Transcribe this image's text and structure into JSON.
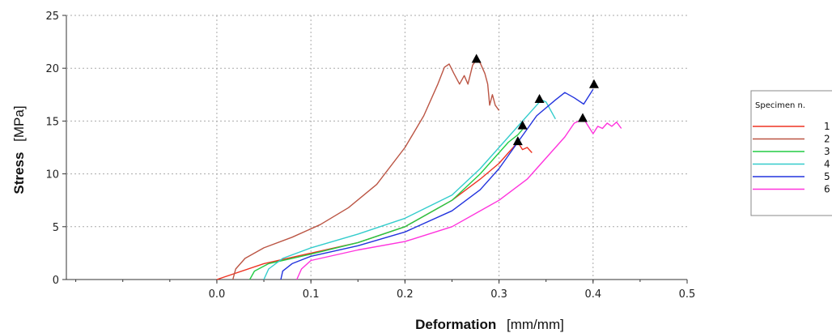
{
  "chart_data": {
    "type": "line",
    "xlabel": {
      "bold": "Deformation",
      "unit": "[mm/mm]"
    },
    "ylabel": {
      "bold": "Stress",
      "unit": "[MPa]"
    },
    "xlim": [
      -0.16,
      0.5
    ],
    "ylim": [
      0,
      25
    ],
    "x_ticks": [
      "0.0",
      "0.1",
      "0.2",
      "0.3",
      "0.4",
      "0.5"
    ],
    "x_tick_values": [
      0,
      0.1,
      0.2,
      0.3,
      0.4,
      0.5
    ],
    "y_ticks": [
      "0",
      "5",
      "10",
      "15",
      "20",
      "25"
    ],
    "y_tick_values": [
      0,
      5,
      10,
      15,
      20,
      25
    ],
    "grid": true,
    "legend": {
      "title": "Specimen n.",
      "placement": "right"
    },
    "series": [
      {
        "name": "1",
        "color": "#ee3322",
        "points": [
          [
            0,
            0
          ],
          [
            0.05,
            1.5
          ],
          [
            0.1,
            2.5
          ],
          [
            0.15,
            3.5
          ],
          [
            0.2,
            5
          ],
          [
            0.25,
            7.5
          ],
          [
            0.28,
            9.5
          ],
          [
            0.3,
            11
          ],
          [
            0.31,
            12
          ],
          [
            0.32,
            13
          ],
          [
            0.325,
            12.3
          ],
          [
            0.33,
            12.5
          ],
          [
            0.335,
            12
          ]
        ],
        "peak": [
          0.32,
          13.1
        ]
      },
      {
        "name": "2",
        "color": "#bb5544",
        "points": [
          [
            0.017,
            0
          ],
          [
            0.02,
            1
          ],
          [
            0.03,
            2
          ],
          [
            0.05,
            3
          ],
          [
            0.08,
            4
          ],
          [
            0.11,
            5.2
          ],
          [
            0.14,
            6.8
          ],
          [
            0.17,
            9
          ],
          [
            0.2,
            12.5
          ],
          [
            0.22,
            15.5
          ],
          [
            0.235,
            18.5
          ],
          [
            0.242,
            20.1
          ],
          [
            0.247,
            20.4
          ],
          [
            0.252,
            19.5
          ],
          [
            0.258,
            18.5
          ],
          [
            0.263,
            19.3
          ],
          [
            0.267,
            18.5
          ],
          [
            0.272,
            20.3
          ],
          [
            0.276,
            20.8
          ],
          [
            0.28,
            20.5
          ],
          [
            0.285,
            19.5
          ],
          [
            0.288,
            18.5
          ],
          [
            0.29,
            16.5
          ],
          [
            0.293,
            17.5
          ],
          [
            0.296,
            16.5
          ],
          [
            0.3,
            16
          ]
        ],
        "peak": [
          0.276,
          20.9
        ]
      },
      {
        "name": "3",
        "color": "#22cc44",
        "points": [
          [
            0.035,
            0
          ],
          [
            0.04,
            0.8
          ],
          [
            0.055,
            1.5
          ],
          [
            0.08,
            2
          ],
          [
            0.1,
            2.4
          ],
          [
            0.15,
            3.5
          ],
          [
            0.2,
            5
          ],
          [
            0.25,
            7.5
          ],
          [
            0.28,
            10
          ],
          [
            0.3,
            12
          ],
          [
            0.31,
            13
          ],
          [
            0.32,
            13.7
          ],
          [
            0.325,
            14.2
          ]
        ],
        "peak": [
          0.325,
          14.6
        ]
      },
      {
        "name": "4",
        "color": "#33cccc",
        "points": [
          [
            0.05,
            0
          ],
          [
            0.055,
            1
          ],
          [
            0.07,
            2
          ],
          [
            0.1,
            3
          ],
          [
            0.15,
            4.3
          ],
          [
            0.2,
            5.8
          ],
          [
            0.25,
            8
          ],
          [
            0.28,
            10.5
          ],
          [
            0.3,
            12.5
          ],
          [
            0.32,
            14.5
          ],
          [
            0.34,
            16.5
          ],
          [
            0.345,
            17
          ],
          [
            0.35,
            16.8
          ],
          [
            0.36,
            15.2
          ]
        ],
        "peak": [
          0.343,
          17.1
        ]
      },
      {
        "name": "5",
        "color": "#2233dd",
        "points": [
          [
            0.068,
            0
          ],
          [
            0.07,
            0.8
          ],
          [
            0.08,
            1.5
          ],
          [
            0.1,
            2.2
          ],
          [
            0.15,
            3.2
          ],
          [
            0.2,
            4.5
          ],
          [
            0.25,
            6.5
          ],
          [
            0.28,
            8.5
          ],
          [
            0.3,
            10.5
          ],
          [
            0.32,
            13
          ],
          [
            0.34,
            15.5
          ],
          [
            0.36,
            17
          ],
          [
            0.37,
            17.7
          ],
          [
            0.38,
            17.2
          ],
          [
            0.39,
            16.6
          ],
          [
            0.395,
            17.3
          ],
          [
            0.4,
            18
          ]
        ],
        "peak": [
          0.401,
          18.5
        ]
      },
      {
        "name": "6",
        "color": "#ff33dd",
        "points": [
          [
            0.085,
            0
          ],
          [
            0.09,
            1
          ],
          [
            0.1,
            1.8
          ],
          [
            0.15,
            2.8
          ],
          [
            0.2,
            3.6
          ],
          [
            0.25,
            5
          ],
          [
            0.3,
            7.5
          ],
          [
            0.33,
            9.5
          ],
          [
            0.35,
            11.5
          ],
          [
            0.37,
            13.5
          ],
          [
            0.38,
            14.8
          ],
          [
            0.385,
            15
          ],
          [
            0.39,
            15.2
          ],
          [
            0.395,
            14.5
          ],
          [
            0.4,
            13.8
          ],
          [
            0.405,
            14.5
          ],
          [
            0.41,
            14.3
          ],
          [
            0.415,
            14.8
          ],
          [
            0.42,
            14.5
          ],
          [
            0.425,
            14.9
          ],
          [
            0.43,
            14.3
          ]
        ],
        "peak": [
          0.389,
          15.3
        ]
      }
    ]
  }
}
